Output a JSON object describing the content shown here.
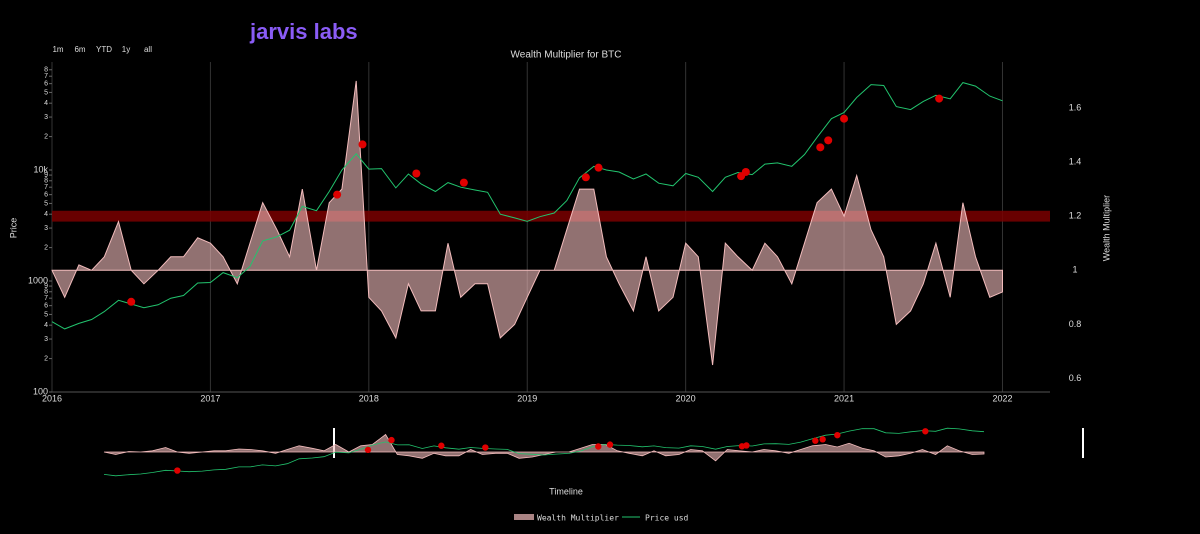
{
  "logo": "jarvis labs",
  "range_buttons": [
    "1m",
    "6m",
    "YTD",
    "1y",
    "all"
  ],
  "chart_data": {
    "type": "line",
    "title": "Wealth Multiplier for BTC",
    "y_label": "Price",
    "y2_label": "Wealth Multiplier",
    "navigator_label": "Timeline",
    "log_y": true,
    "grid": true,
    "xlim": [
      2016,
      2022.3
    ],
    "xticks": [
      2016,
      2017,
      2018,
      2019,
      2020,
      2021,
      2022
    ],
    "ylim": [
      100,
      94000
    ],
    "yticks": [
      100,
      {
        "value": 200,
        "label": "2"
      },
      {
        "value": 300,
        "label": "3"
      },
      {
        "value": 400,
        "label": "4"
      },
      {
        "value": 500,
        "label": "5"
      },
      {
        "value": 600,
        "label": "6"
      },
      {
        "value": 700,
        "label": "7"
      },
      {
        "value": 800,
        "label": "8"
      },
      {
        "value": 900,
        "label": "9"
      },
      1000,
      {
        "value": 2000,
        "label": "2"
      },
      {
        "value": 3000,
        "label": "3"
      },
      {
        "value": 4000,
        "label": "4"
      },
      {
        "value": 5000,
        "label": "5"
      },
      {
        "value": 6000,
        "label": "6"
      },
      {
        "value": 7000,
        "label": "7"
      },
      {
        "value": 8000,
        "label": "8"
      },
      {
        "value": 9000,
        "label": "9"
      },
      {
        "value": 10000,
        "label": "10k"
      },
      {
        "value": 20000,
        "label": "2"
      },
      {
        "value": 30000,
        "label": "3"
      },
      {
        "value": 40000,
        "label": "4"
      },
      {
        "value": 50000,
        "label": "5"
      },
      {
        "value": 60000,
        "label": "6"
      },
      {
        "value": 70000,
        "label": "7"
      },
      {
        "value": 80000,
        "label": "8"
      }
    ],
    "y2lim": [
      0.55,
      1.77
    ],
    "y2ticks": [
      0.6,
      0.8,
      1,
      1.2,
      1.4,
      1.6
    ],
    "y2_baseline": 1,
    "highlight_band": {
      "range": [
        1.18,
        1.22
      ],
      "color": "#7a0000"
    },
    "x": [
      2016.0,
      2016.08,
      2016.17,
      2016.25,
      2016.33,
      2016.42,
      2016.5,
      2016.58,
      2016.67,
      2016.75,
      2016.83,
      2016.92,
      2017.0,
      2017.08,
      2017.17,
      2017.25,
      2017.33,
      2017.42,
      2017.5,
      2017.58,
      2017.67,
      2017.75,
      2017.83,
      2017.92,
      2018.0,
      2018.08,
      2018.17,
      2018.25,
      2018.33,
      2018.42,
      2018.5,
      2018.58,
      2018.67,
      2018.75,
      2018.83,
      2018.92,
      2019.0,
      2019.08,
      2019.17,
      2019.25,
      2019.33,
      2019.42,
      2019.5,
      2019.58,
      2019.67,
      2019.75,
      2019.83,
      2019.92,
      2020.0,
      2020.08,
      2020.17,
      2020.25,
      2020.33,
      2020.42,
      2020.5,
      2020.58,
      2020.67,
      2020.75,
      2020.83,
      2020.92,
      2021.0,
      2021.08,
      2021.17,
      2021.25,
      2021.33,
      2021.42,
      2021.5,
      2021.58,
      2021.67,
      2021.75,
      2021.83,
      2021.92,
      2022.0
    ],
    "series": [
      {
        "name": "Wealth Multiplier",
        "type": "area",
        "axis": "y2",
        "color": "#f2bcbc",
        "values": [
          1.0,
          0.9,
          1.02,
          1.0,
          1.05,
          1.18,
          1.0,
          0.95,
          1.0,
          1.05,
          1.05,
          1.12,
          1.1,
          1.05,
          0.95,
          1.1,
          1.25,
          1.15,
          1.05,
          1.3,
          1.0,
          1.25,
          1.3,
          1.7,
          0.9,
          0.85,
          0.75,
          0.95,
          0.85,
          0.85,
          1.1,
          0.9,
          0.95,
          0.95,
          0.75,
          0.8,
          0.9,
          1.0,
          1.0,
          1.15,
          1.3,
          1.3,
          1.05,
          0.95,
          0.85,
          1.05,
          0.85,
          0.9,
          1.1,
          1.05,
          0.65,
          1.1,
          1.05,
          1.0,
          1.1,
          1.05,
          0.95,
          1.1,
          1.25,
          1.3,
          1.2,
          1.35,
          1.15,
          1.05,
          0.8,
          0.85,
          0.95,
          1.1,
          0.9,
          1.25,
          1.05,
          0.9,
          0.92
        ]
      },
      {
        "name": "Price usd",
        "type": "line",
        "color": "#22c46e",
        "values": [
          430,
          370,
          415,
          450,
          530,
          670,
          620,
          575,
          610,
          700,
          740,
          960,
          970,
          1190,
          1070,
          1350,
          2300,
          2500,
          2870,
          4700,
          4300,
          6400,
          10000,
          14000,
          10200,
          10300,
          6900,
          9200,
          7500,
          6400,
          7700,
          7000,
          6600,
          6300,
          4000,
          3700,
          3450,
          3800,
          4100,
          5300,
          8500,
          10800,
          10000,
          9600,
          8300,
          9200,
          7600,
          7200,
          9300,
          8600,
          6400,
          8600,
          9500,
          9100,
          11300,
          11600,
          10800,
          13800,
          19700,
          29000,
          33000,
          45000,
          58800,
          57700,
          37300,
          35000,
          41500,
          47100,
          43800,
          61300,
          57000,
          46300,
          42000
        ]
      }
    ],
    "signals": {
      "color": "#e00000",
      "x": [
        2016.5,
        2017.8,
        2017.96,
        2018.3,
        2018.6,
        2019.37,
        2019.45,
        2020.35,
        2020.38,
        2020.85,
        2020.9,
        2021.0,
        2021.6
      ],
      "values": [
        650,
        6000,
        17000,
        9300,
        7700,
        8600,
        10500,
        8800,
        9600,
        16000,
        18500,
        29000,
        44000
      ]
    }
  }
}
